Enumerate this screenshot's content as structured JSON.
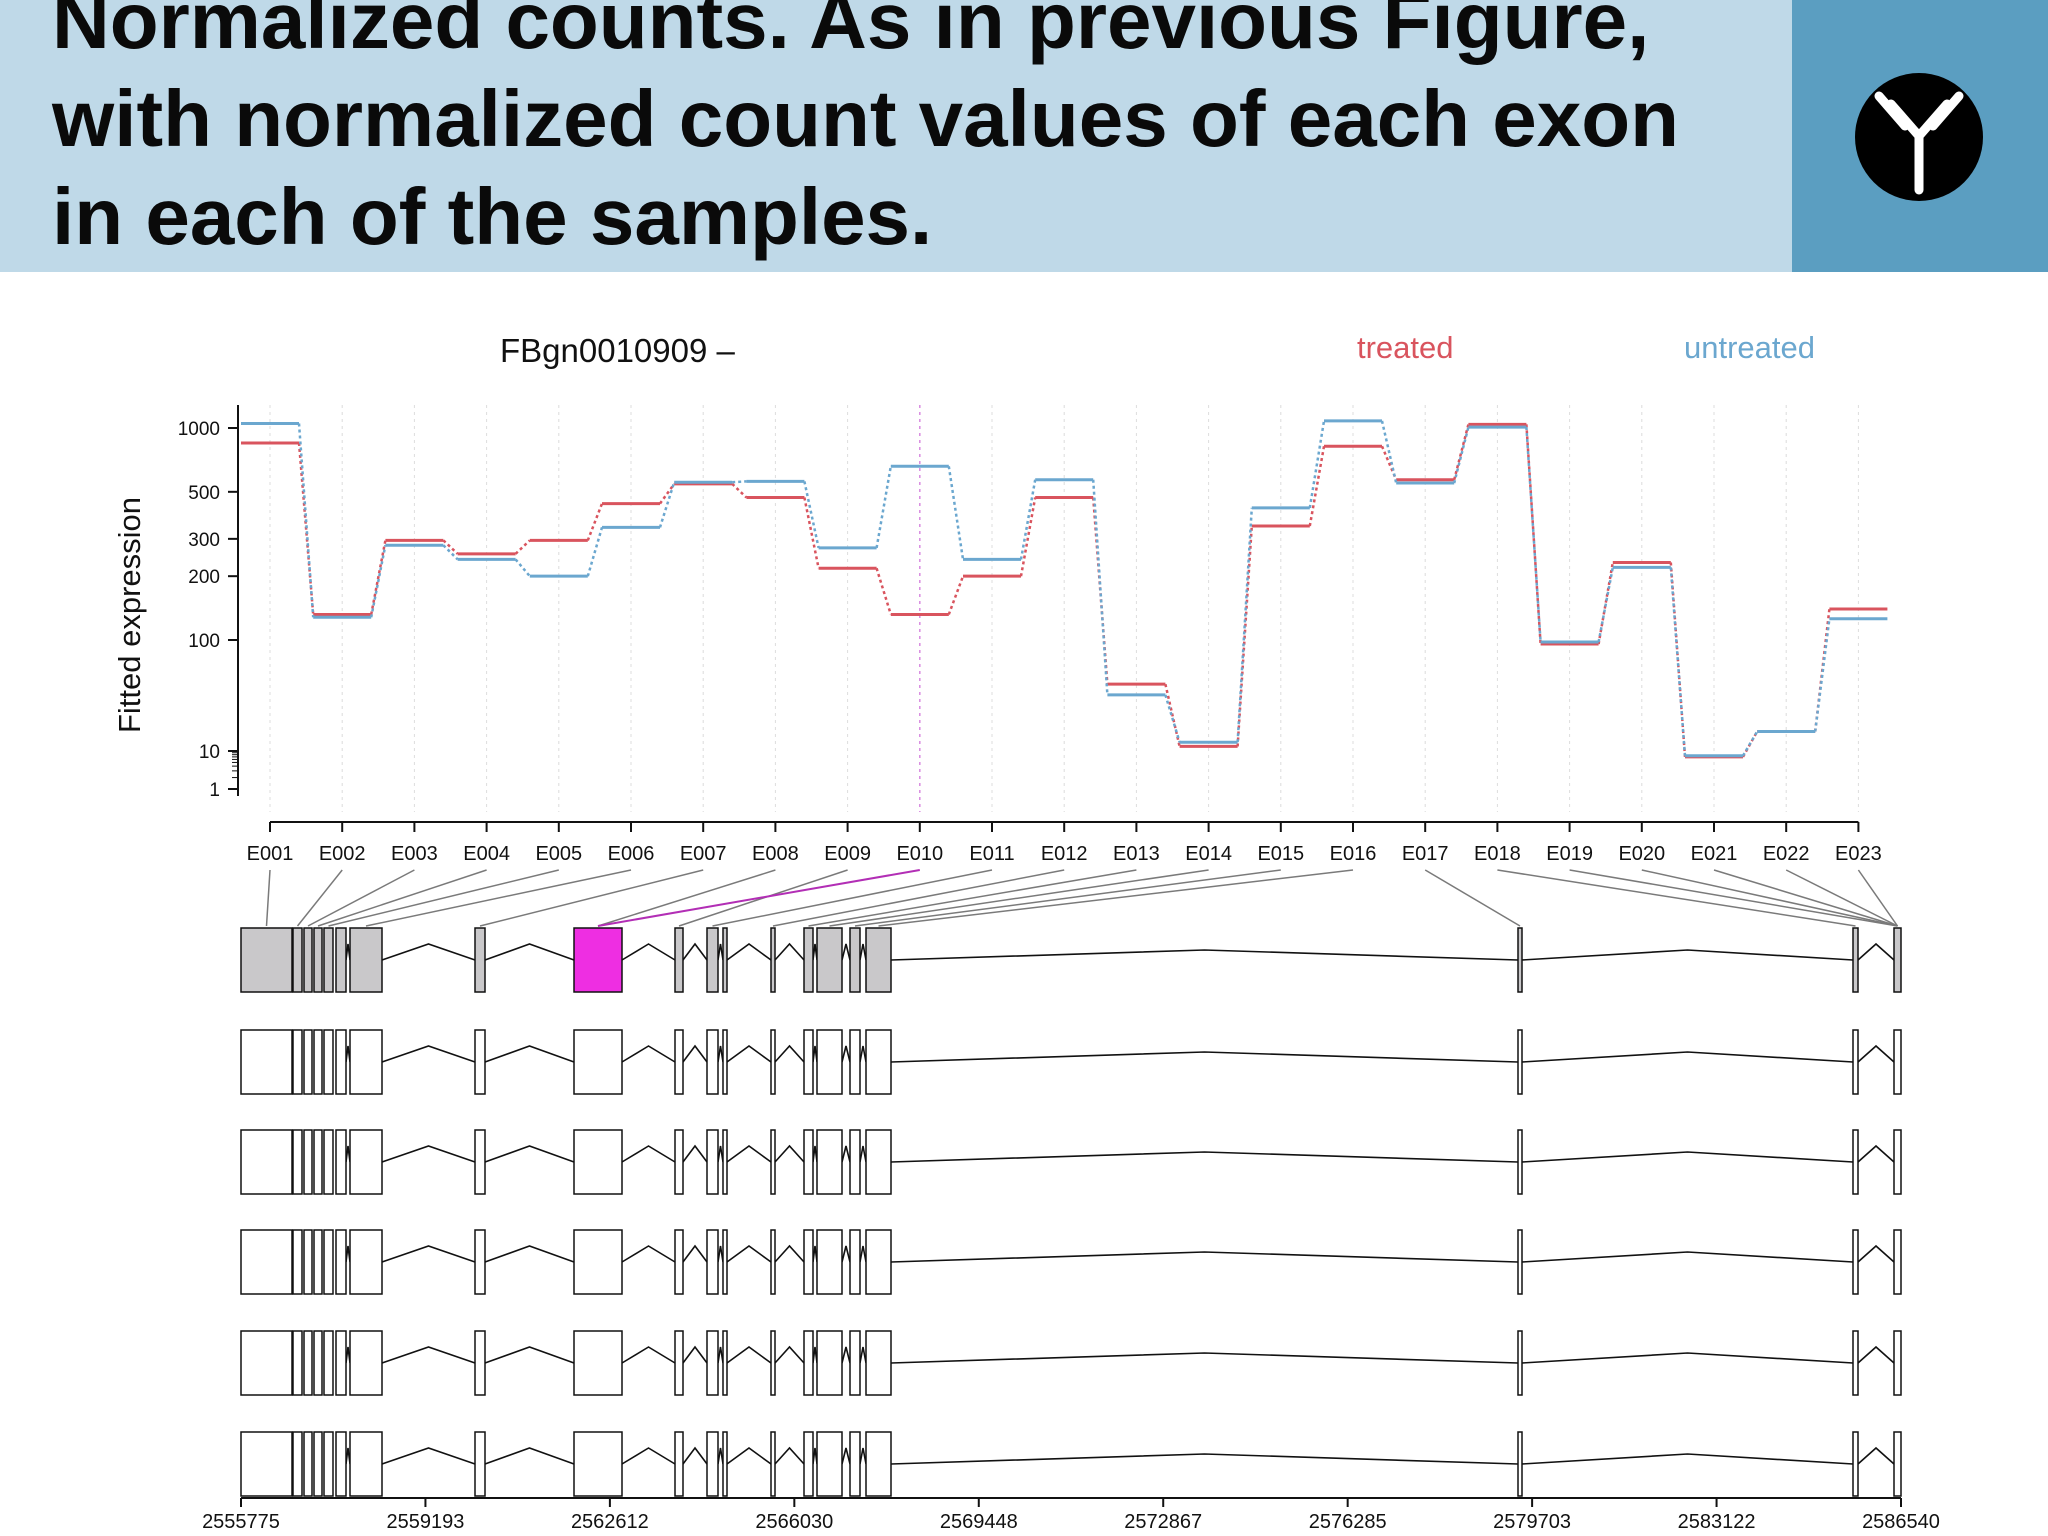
{
  "slide": {
    "title_lines": [
      "Normalized counts. As in previous Figure,",
      "with normalized count values of each exon",
      "in each of the samples."
    ],
    "logo_icon": "antibody-icon",
    "colors": {
      "header_bg": "#bfd9e8",
      "logo_bg": "#5b9ec1",
      "treated": "#d9545e",
      "untreated": "#6ba7cf",
      "highlight": "#ee2ee2",
      "exon_fill": "#c9c8ca"
    }
  },
  "chart_data": {
    "type": "line",
    "title": "FBgn0010909 –",
    "ylabel": "Fitted expression",
    "xlabel": "",
    "yscale": "log",
    "ylim": [
      1,
      1000
    ],
    "yticks": [
      1000,
      500,
      300,
      200,
      100,
      10,
      1
    ],
    "legend": {
      "placement": "top-right",
      "entries": [
        "treated",
        "untreated"
      ]
    },
    "categories": [
      "E001",
      "E002",
      "E003",
      "E004",
      "E005",
      "E006",
      "E007",
      "E008",
      "E009",
      "E010",
      "E011",
      "E012",
      "E013",
      "E014",
      "E015",
      "E016",
      "E017",
      "E018",
      "E019",
      "E020",
      "E021",
      "E022",
      "E023"
    ],
    "highlighted_exon": "E010",
    "series": [
      {
        "name": "treated",
        "values": [
          850,
          132,
          295,
          255,
          295,
          440,
          545,
          470,
          218,
          132,
          200,
          470,
          40,
          11,
          345,
          820,
          570,
          1040,
          92,
          232,
          7,
          15,
          140
        ]
      },
      {
        "name": "untreated",
        "values": [
          1050,
          128,
          280,
          240,
          200,
          340,
          555,
          560,
          272,
          660,
          240,
          570,
          32,
          12,
          420,
          1080,
          550,
          1010,
          96,
          220,
          7.5,
          15,
          126
        ]
      }
    ],
    "genomic_axis": {
      "ticks": [
        "2555775",
        "2559193",
        "2562612",
        "2566030",
        "2569448",
        "2572867",
        "2576285",
        "2579703",
        "2583122",
        "2586540"
      ]
    },
    "exon_tracks": {
      "highlight_track": 0,
      "highlight_exon": "E010",
      "rows": 6
    }
  }
}
